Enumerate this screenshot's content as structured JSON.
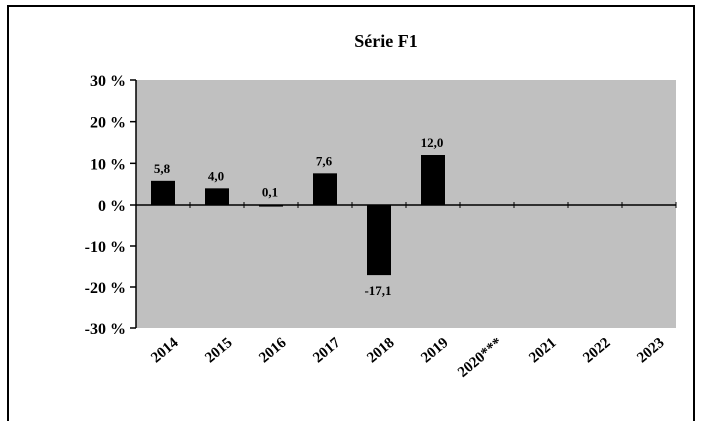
{
  "chart_data": {
    "type": "bar",
    "title": "Série  F1",
    "categories": [
      "2014",
      "2015",
      "2016",
      "2017",
      "2018",
      "2019",
      "2020***",
      "2021",
      "2022",
      "2023"
    ],
    "values": [
      5.8,
      4.0,
      0.1,
      7.6,
      -17.1,
      12.0,
      null,
      null,
      null,
      null
    ],
    "data_labels": [
      "5,8",
      "4,0",
      "0,1",
      "7,6",
      "-17,1",
      "12,0",
      "",
      "",
      "",
      ""
    ],
    "y_ticks": [
      30,
      20,
      10,
      0,
      -10,
      -20,
      -30
    ],
    "y_tick_labels": [
      "30 %",
      "20 %",
      "10 %",
      "0 %",
      "-10 %",
      "-20 %",
      "-30 %"
    ],
    "ylim": [
      -30,
      30
    ],
    "xlabel": "",
    "ylabel": "",
    "grid": false,
    "legend": "none",
    "colors": {
      "plot_background": "#c0c0c0",
      "bar": "#000000",
      "axis": "#000000"
    }
  }
}
